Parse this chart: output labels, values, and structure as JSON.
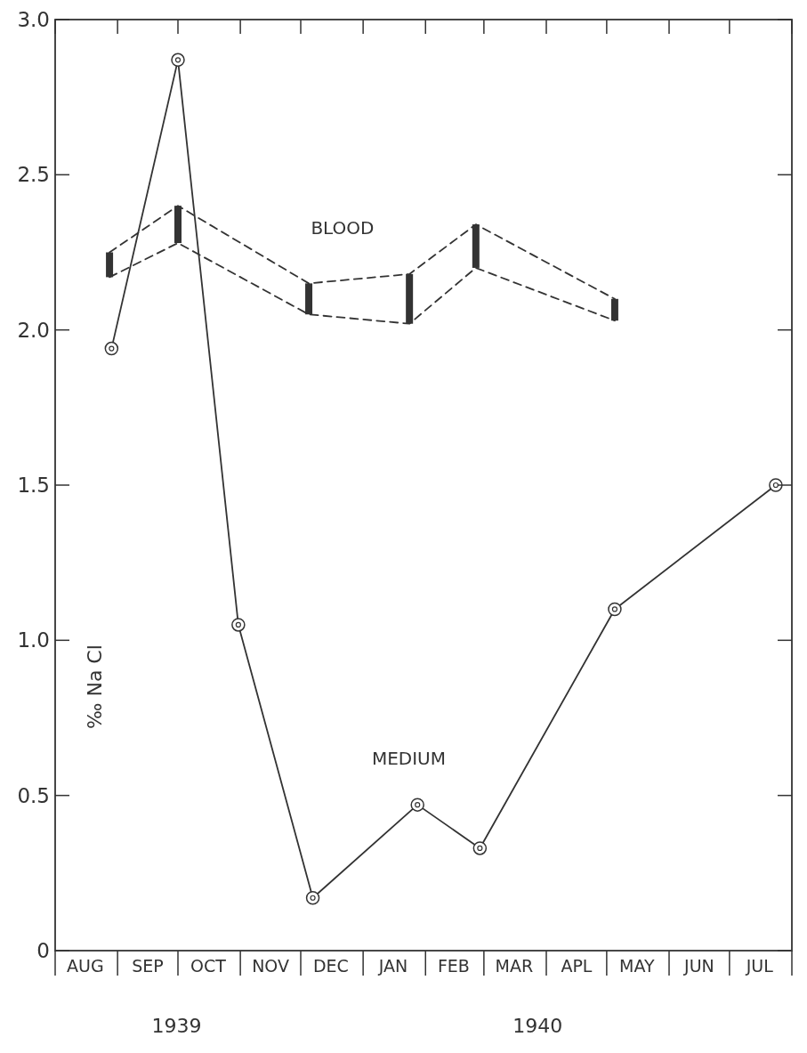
{
  "chart_data": {
    "type": "line",
    "ylabel": "‰ Na Cl",
    "annotations": [
      "1939",
      "1940"
    ],
    "xlim": [
      "1939-08-01",
      "1940-08-01"
    ],
    "xticks": [
      {
        "value": "1939-08-01",
        "label": null
      },
      {
        "value": "1939-08-16",
        "label": "AUG"
      },
      {
        "value": "1939-09-01",
        "label": null
      },
      {
        "value": "1939-09-16",
        "label": "SEP"
      },
      {
        "value": "1939-10-01",
        "label": null
      },
      {
        "value": "1939-10-16",
        "label": "OCT"
      },
      {
        "value": "1939-11-01",
        "label": null
      },
      {
        "value": "1939-11-16",
        "label": "NOV"
      },
      {
        "value": "1939-12-01",
        "label": null
      },
      {
        "value": "1939-12-16",
        "label": "DEC"
      },
      {
        "value": "1940-01-01",
        "label": null
      },
      {
        "value": "1940-01-16",
        "label": "JAN"
      },
      {
        "value": "1940-02-01",
        "label": null
      },
      {
        "value": "1940-02-15",
        "label": "FEB"
      },
      {
        "value": "1940-03-01",
        "label": null
      },
      {
        "value": "1940-03-16",
        "label": "MAR"
      },
      {
        "value": "1940-04-01",
        "label": null
      },
      {
        "value": "1940-04-16",
        "label": "APL"
      },
      {
        "value": "1940-05-01",
        "label": null
      },
      {
        "value": "1940-05-16",
        "label": "MAY"
      },
      {
        "value": "1940-06-01",
        "label": null
      },
      {
        "value": "1940-06-16",
        "label": "JUN"
      },
      {
        "value": "1940-07-01",
        "label": null
      },
      {
        "value": "1940-07-16",
        "label": "JUL"
      },
      {
        "value": "1940-08-01",
        "label": null
      }
    ],
    "ylim": [
      0,
      3
    ],
    "yticks": [
      0,
      {
        "value": 0.5,
        "label": "0.5"
      },
      {
        "value": 1,
        "label": "1.0"
      },
      {
        "value": 1.5,
        "label": "1.5"
      },
      {
        "value": 2,
        "label": "2.0"
      },
      {
        "value": 2.5,
        "label": "2.5"
      },
      {
        "value": 3,
        "label": "3.0"
      }
    ],
    "series": [
      {
        "name": "BLOOD",
        "type": "bar",
        "color": "#333333",
        "x": [
          "1939-08-28",
          "1939-10-01",
          "1939-12-05",
          "1940-01-24",
          "1940-02-26",
          "1940-05-05"
        ],
        "base": [
          2.17,
          2.28,
          2.05,
          2.02,
          2.2,
          2.03
        ],
        "values": [
          0.08,
          0.12,
          0.1,
          0.16,
          0.14,
          0.07
        ]
      },
      {
        "color": "#333333",
        "line_style": "dashed",
        "marker": "none",
        "x": [
          "1939-08-28",
          "1939-10-01",
          "1939-12-05",
          "1940-01-24",
          "1940-02-26",
          "1940-05-05"
        ],
        "values": [
          2.25,
          2.4,
          2.15,
          2.18,
          2.34,
          2.1
        ]
      },
      {
        "color": "#333333",
        "line_style": "dashed",
        "marker": "none",
        "x": [
          "1939-08-28",
          "1939-10-01",
          "1939-12-05",
          "1940-01-24",
          "1940-02-26",
          "1940-05-05"
        ],
        "values": [
          2.17,
          2.28,
          2.05,
          2.02,
          2.2,
          2.03
        ]
      },
      {
        "name": "MEDIUM",
        "color": "#333333",
        "line_style": "solid",
        "marker": "circle",
        "x": [
          "1939-08-29",
          "1939-10-01",
          "1939-10-31",
          "1939-12-07",
          "1940-01-28",
          "1940-02-28",
          "1940-05-05",
          "1940-07-24"
        ],
        "values": [
          1.94,
          2.87,
          1.05,
          0.17,
          0.47,
          0.33,
          1.1,
          1.5
        ]
      }
    ]
  }
}
